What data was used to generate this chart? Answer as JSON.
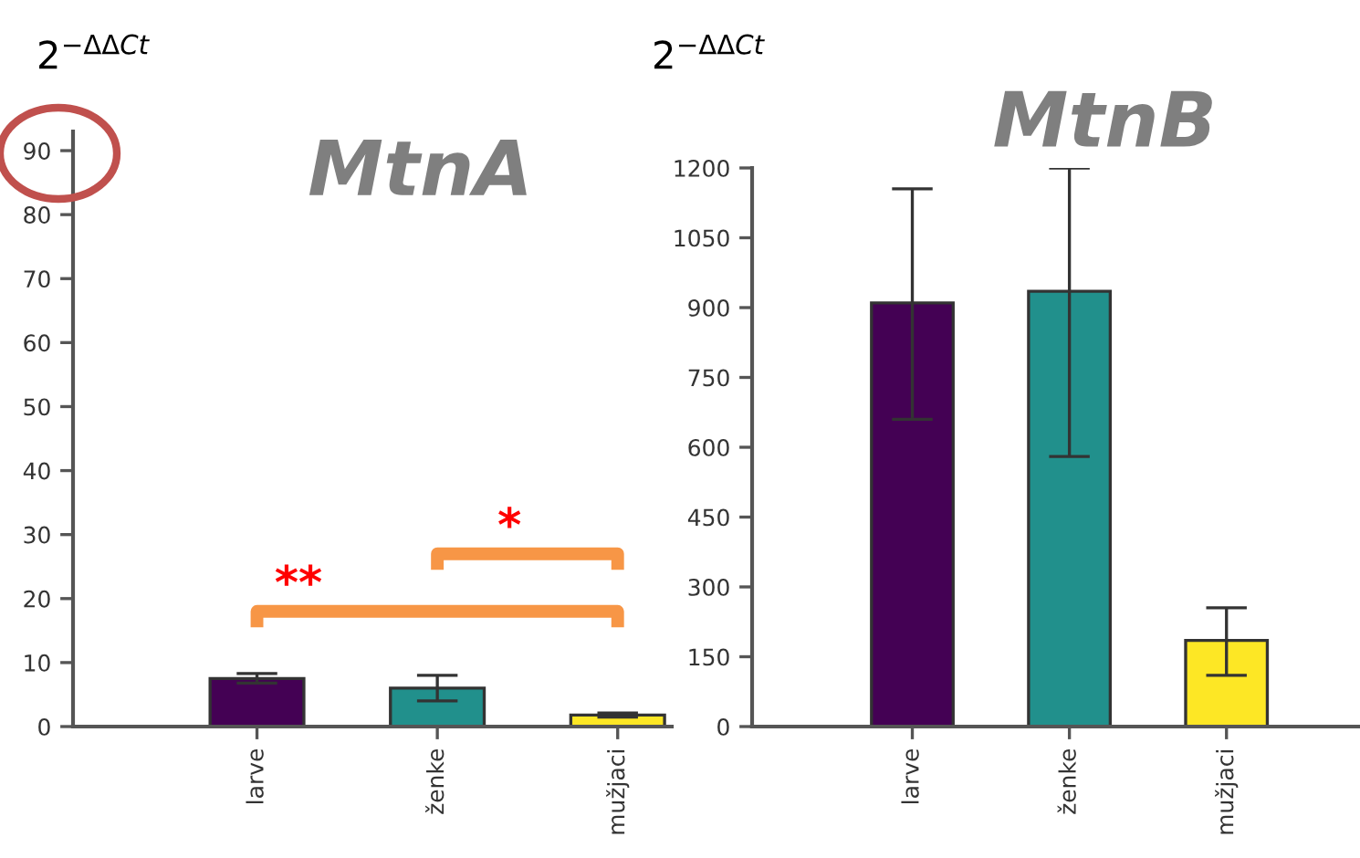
{
  "chart_data": [
    {
      "type": "bar",
      "title": "MtnA",
      "ylabel": "2$^{−ΔΔCt}$",
      "categories": [
        "larve",
        "ženke",
        "mužjaci"
      ],
      "values": [
        7.5,
        6,
        1.8
      ],
      "errors": [
        [
          6.8,
          8.3
        ],
        [
          4,
          8
        ],
        [
          1.5,
          2.1
        ]
      ],
      "colors": [
        "#440154",
        "#21908c",
        "#fde725"
      ],
      "ylim": [
        0,
        93
      ],
      "yticks": [
        0,
        10,
        20,
        30,
        40,
        50,
        60,
        70,
        80,
        90
      ],
      "grid": false,
      "annotations": [
        "**",
        "*"
      ]
    },
    {
      "type": "bar",
      "title": "MtnB",
      "ylabel": "2$^{−ΔΔCt}$",
      "categories": [
        "larve",
        "ženke",
        "mužjaci"
      ],
      "values": [
        910,
        935,
        185
      ],
      "errors": [
        [
          660,
          1155
        ],
        [
          580,
          1200
        ],
        [
          110,
          255
        ]
      ],
      "colors": [
        "#440154",
        "#21908c",
        "#fde725"
      ],
      "ylim": [
        0,
        1200
      ],
      "yticks": [
        0,
        150,
        300,
        450,
        600,
        750,
        900,
        1050,
        1200
      ],
      "grid": false
    }
  ]
}
